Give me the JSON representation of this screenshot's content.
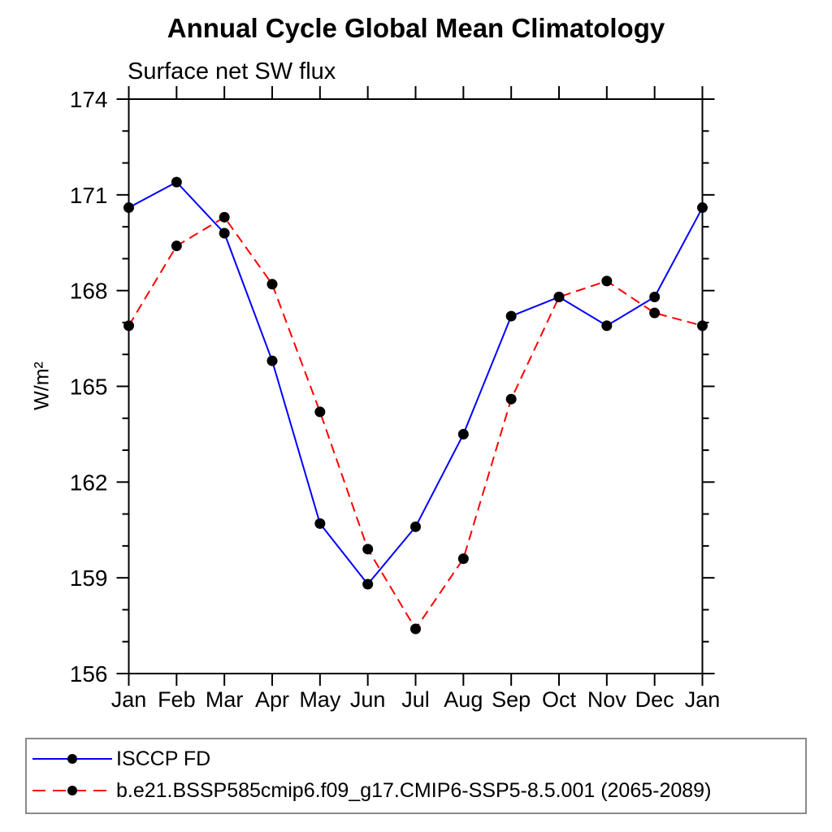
{
  "title": "Annual Cycle Global Mean Climatology",
  "chart_data": {
    "type": "line",
    "subtitle": "Surface net SW flux",
    "ylabel": "W/m²",
    "x_categories": [
      "Jan",
      "Feb",
      "Mar",
      "Apr",
      "May",
      "Jun",
      "Jul",
      "Aug",
      "Sep",
      "Oct",
      "Nov",
      "Dec",
      "Jan"
    ],
    "ylim": [
      156,
      174
    ],
    "y_major_ticks": [
      156,
      159,
      162,
      165,
      168,
      171,
      174
    ],
    "y_minor_step": 1,
    "grid": false,
    "legend_position": "bottom",
    "axis_color": "#000000",
    "legend_border_color": "#8a8a8a",
    "series": [
      {
        "name": "ISCCP FD",
        "color": "#0000ff",
        "style": "solid",
        "marker": "circle",
        "marker_color": "#000000",
        "values": [
          170.6,
          171.4,
          169.8,
          165.8,
          160.7,
          158.8,
          160.6,
          163.5,
          167.2,
          167.8,
          166.9,
          167.8,
          170.6
        ]
      },
      {
        "name": "b.e21.BSSP585cmip6.f09_g17.CMIP6-SSP5-8.5.001 (2065-2089)",
        "color": "#ff0000",
        "style": "dashed",
        "marker": "circle",
        "marker_color": "#000000",
        "values": [
          166.9,
          169.4,
          170.3,
          168.2,
          164.2,
          159.9,
          157.4,
          159.6,
          164.6,
          167.8,
          168.3,
          167.3,
          166.9
        ]
      }
    ]
  }
}
